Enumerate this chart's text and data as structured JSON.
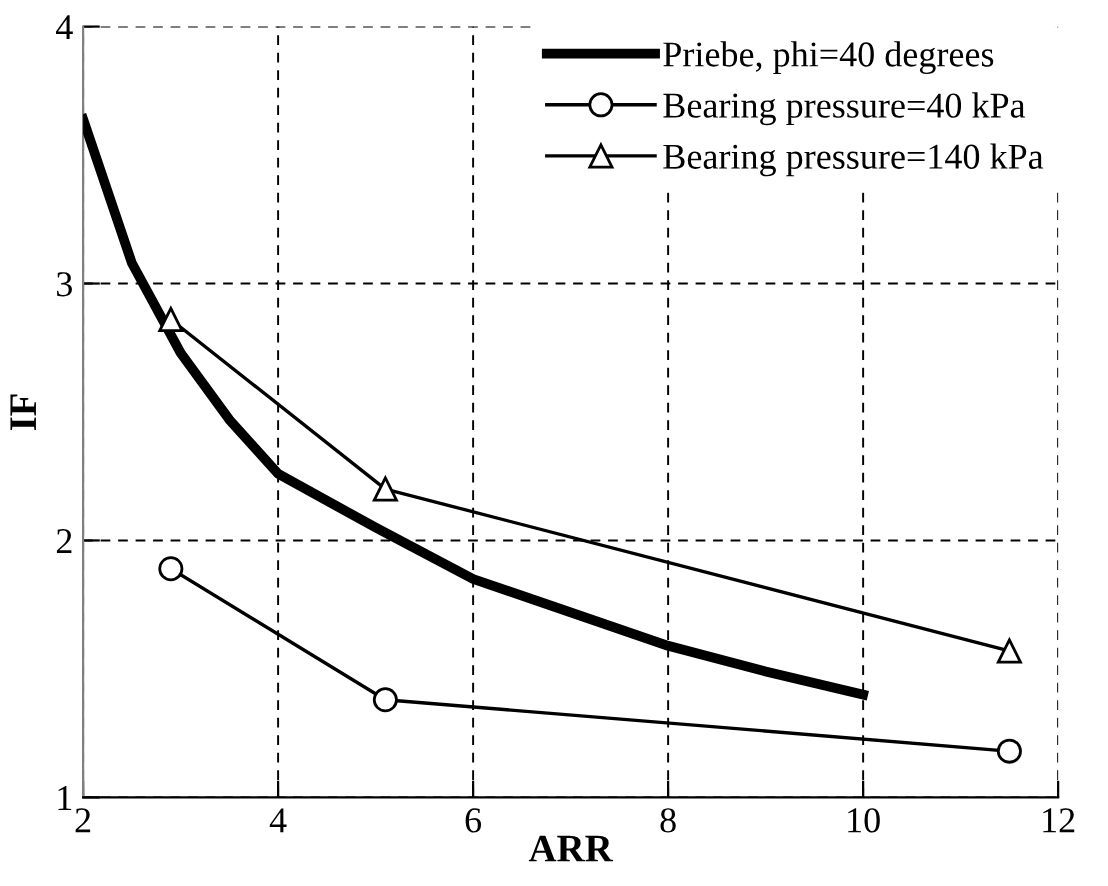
{
  "chart_data": {
    "type": "line",
    "xlabel": "ARR",
    "ylabel": "IF",
    "xlim": [
      2,
      12
    ],
    "xticks": [
      2,
      4,
      6,
      8,
      10,
      12
    ],
    "ylim": [
      1,
      4
    ],
    "yticks": [
      1,
      2,
      3,
      4
    ],
    "grid": true,
    "legend": "top right",
    "series": [
      {
        "name": "Priebe, phi=40 degrees",
        "color": "#000000",
        "marker": "none",
        "x": [
          2,
          2.5,
          3,
          3.5,
          4,
          5,
          6,
          7,
          8,
          9,
          10
        ],
        "values": [
          3.64,
          3.08,
          2.73,
          2.47,
          2.26,
          2.05,
          1.85,
          1.72,
          1.59,
          1.49,
          1.4
        ]
      },
      {
        "name": "Bearing pressure=40 kPa",
        "color": "#000000",
        "marker": "circle",
        "x": [
          2.9,
          5.1,
          11.5
        ],
        "values": [
          1.89,
          1.38,
          1.18
        ]
      },
      {
        "name": "Bearing pressure=140 kPa",
        "color": "#000000",
        "marker": "triangle",
        "x": [
          2.9,
          5.1,
          11.5
        ],
        "values": [
          2.86,
          2.2,
          1.57
        ]
      }
    ]
  }
}
